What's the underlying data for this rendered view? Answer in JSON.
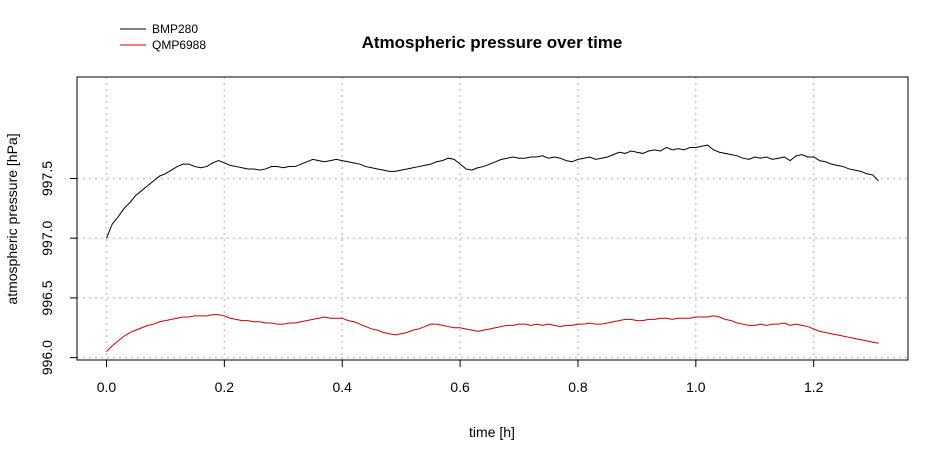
{
  "chart_data": {
    "type": "line",
    "title": "Atmospheric pressure over time",
    "xlabel": "time [h]",
    "ylabel": "atmospheric pressure [hPa]",
    "xlim": [
      -0.05,
      1.36
    ],
    "ylim": [
      995.98,
      998.35
    ],
    "x_ticks": [
      0.0,
      0.2,
      0.4,
      0.6,
      0.8,
      1.0,
      1.2
    ],
    "x_tick_labels": [
      "0.0",
      "0.2",
      "0.4",
      "0.6",
      "0.8",
      "1.0",
      "1.2"
    ],
    "y_ticks": [
      996.0,
      996.5,
      997.0,
      997.5
    ],
    "y_tick_labels": [
      "996.0",
      "996.5",
      "997.0",
      "997.5"
    ],
    "grid": true,
    "legend_position": "top-left",
    "series": [
      {
        "name": "BMP280",
        "color": "#000000",
        "points": [
          [
            0.0,
            997.0
          ],
          [
            0.01,
            997.12
          ],
          [
            0.02,
            997.18
          ],
          [
            0.03,
            997.25
          ],
          [
            0.04,
            997.3
          ],
          [
            0.05,
            997.36
          ],
          [
            0.06,
            997.4
          ],
          [
            0.07,
            997.44
          ],
          [
            0.08,
            997.48
          ],
          [
            0.09,
            997.52
          ],
          [
            0.1,
            997.54
          ],
          [
            0.11,
            997.57
          ],
          [
            0.12,
            997.6
          ],
          [
            0.13,
            997.62
          ],
          [
            0.14,
            997.62
          ],
          [
            0.15,
            997.6
          ],
          [
            0.16,
            997.59
          ],
          [
            0.17,
            997.6
          ],
          [
            0.18,
            997.63
          ],
          [
            0.19,
            997.65
          ],
          [
            0.2,
            997.63
          ],
          [
            0.21,
            997.61
          ],
          [
            0.22,
            997.6
          ],
          [
            0.23,
            997.59
          ],
          [
            0.24,
            997.58
          ],
          [
            0.25,
            997.58
          ],
          [
            0.26,
            997.57
          ],
          [
            0.27,
            997.58
          ],
          [
            0.28,
            997.6
          ],
          [
            0.29,
            997.6
          ],
          [
            0.3,
            997.59
          ],
          [
            0.31,
            997.6
          ],
          [
            0.32,
            997.6
          ],
          [
            0.33,
            997.62
          ],
          [
            0.34,
            997.64
          ],
          [
            0.35,
            997.66
          ],
          [
            0.36,
            997.65
          ],
          [
            0.37,
            997.64
          ],
          [
            0.38,
            997.65
          ],
          [
            0.39,
            997.66
          ],
          [
            0.4,
            997.65
          ],
          [
            0.41,
            997.64
          ],
          [
            0.42,
            997.63
          ],
          [
            0.43,
            997.62
          ],
          [
            0.44,
            997.6
          ],
          [
            0.45,
            997.59
          ],
          [
            0.46,
            997.58
          ],
          [
            0.47,
            997.57
          ],
          [
            0.48,
            997.56
          ],
          [
            0.49,
            997.56
          ],
          [
            0.5,
            997.57
          ],
          [
            0.51,
            997.58
          ],
          [
            0.52,
            997.59
          ],
          [
            0.53,
            997.6
          ],
          [
            0.54,
            997.61
          ],
          [
            0.55,
            997.62
          ],
          [
            0.56,
            997.64
          ],
          [
            0.57,
            997.65
          ],
          [
            0.58,
            997.67
          ],
          [
            0.59,
            997.66
          ],
          [
            0.6,
            997.62
          ],
          [
            0.61,
            997.58
          ],
          [
            0.62,
            997.57
          ],
          [
            0.63,
            997.59
          ],
          [
            0.64,
            997.6
          ],
          [
            0.65,
            997.62
          ],
          [
            0.66,
            997.64
          ],
          [
            0.67,
            997.66
          ],
          [
            0.68,
            997.67
          ],
          [
            0.69,
            997.68
          ],
          [
            0.7,
            997.67
          ],
          [
            0.71,
            997.67
          ],
          [
            0.72,
            997.68
          ],
          [
            0.73,
            997.68
          ],
          [
            0.74,
            997.69
          ],
          [
            0.75,
            997.67
          ],
          [
            0.76,
            997.68
          ],
          [
            0.77,
            997.67
          ],
          [
            0.78,
            997.65
          ],
          [
            0.79,
            997.64
          ],
          [
            0.8,
            997.66
          ],
          [
            0.81,
            997.67
          ],
          [
            0.82,
            997.68
          ],
          [
            0.83,
            997.66
          ],
          [
            0.84,
            997.67
          ],
          [
            0.85,
            997.68
          ],
          [
            0.86,
            997.7
          ],
          [
            0.87,
            997.72
          ],
          [
            0.88,
            997.71
          ],
          [
            0.89,
            997.73
          ],
          [
            0.9,
            997.72
          ],
          [
            0.91,
            997.71
          ],
          [
            0.92,
            997.73
          ],
          [
            0.93,
            997.74
          ],
          [
            0.94,
            997.73
          ],
          [
            0.95,
            997.76
          ],
          [
            0.96,
            997.74
          ],
          [
            0.97,
            997.75
          ],
          [
            0.98,
            997.74
          ],
          [
            0.99,
            997.76
          ],
          [
            1.0,
            997.76
          ],
          [
            1.01,
            997.77
          ],
          [
            1.02,
            997.78
          ],
          [
            1.03,
            997.74
          ],
          [
            1.04,
            997.72
          ],
          [
            1.05,
            997.71
          ],
          [
            1.06,
            997.7
          ],
          [
            1.07,
            997.69
          ],
          [
            1.08,
            997.67
          ],
          [
            1.09,
            997.66
          ],
          [
            1.1,
            997.68
          ],
          [
            1.11,
            997.67
          ],
          [
            1.12,
            997.68
          ],
          [
            1.13,
            997.66
          ],
          [
            1.14,
            997.67
          ],
          [
            1.15,
            997.68
          ],
          [
            1.16,
            997.65
          ],
          [
            1.17,
            997.69
          ],
          [
            1.18,
            997.7
          ],
          [
            1.19,
            997.68
          ],
          [
            1.2,
            997.68
          ],
          [
            1.21,
            997.65
          ],
          [
            1.22,
            997.64
          ],
          [
            1.23,
            997.62
          ],
          [
            1.24,
            997.61
          ],
          [
            1.25,
            997.6
          ],
          [
            1.26,
            997.58
          ],
          [
            1.27,
            997.57
          ],
          [
            1.28,
            997.56
          ],
          [
            1.29,
            997.54
          ],
          [
            1.3,
            997.53
          ],
          [
            1.31,
            997.48
          ]
        ]
      },
      {
        "name": "QMP6988",
        "color": "#cc0000",
        "points": [
          [
            0.0,
            996.05
          ],
          [
            0.01,
            996.1
          ],
          [
            0.02,
            996.14
          ],
          [
            0.03,
            996.18
          ],
          [
            0.04,
            996.21
          ],
          [
            0.05,
            996.23
          ],
          [
            0.06,
            996.25
          ],
          [
            0.07,
            996.27
          ],
          [
            0.08,
            996.28
          ],
          [
            0.09,
            996.3
          ],
          [
            0.1,
            996.31
          ],
          [
            0.11,
            996.32
          ],
          [
            0.12,
            996.33
          ],
          [
            0.13,
            996.34
          ],
          [
            0.14,
            996.34
          ],
          [
            0.15,
            996.35
          ],
          [
            0.16,
            996.35
          ],
          [
            0.17,
            996.35
          ],
          [
            0.18,
            996.36
          ],
          [
            0.19,
            996.36
          ],
          [
            0.2,
            996.35
          ],
          [
            0.21,
            996.33
          ],
          [
            0.22,
            996.32
          ],
          [
            0.23,
            996.31
          ],
          [
            0.24,
            996.31
          ],
          [
            0.25,
            996.3
          ],
          [
            0.26,
            996.3
          ],
          [
            0.27,
            996.29
          ],
          [
            0.28,
            996.29
          ],
          [
            0.29,
            996.28
          ],
          [
            0.3,
            996.28
          ],
          [
            0.31,
            996.29
          ],
          [
            0.32,
            996.29
          ],
          [
            0.33,
            996.3
          ],
          [
            0.34,
            996.31
          ],
          [
            0.35,
            996.32
          ],
          [
            0.36,
            996.33
          ],
          [
            0.37,
            996.34
          ],
          [
            0.38,
            996.33
          ],
          [
            0.39,
            996.33
          ],
          [
            0.4,
            996.33
          ],
          [
            0.41,
            996.31
          ],
          [
            0.42,
            996.3
          ],
          [
            0.43,
            996.28
          ],
          [
            0.44,
            996.26
          ],
          [
            0.45,
            996.24
          ],
          [
            0.46,
            996.23
          ],
          [
            0.47,
            996.21
          ],
          [
            0.48,
            996.2
          ],
          [
            0.49,
            996.19
          ],
          [
            0.5,
            996.2
          ],
          [
            0.51,
            996.21
          ],
          [
            0.52,
            996.23
          ],
          [
            0.53,
            996.24
          ],
          [
            0.54,
            996.26
          ],
          [
            0.55,
            996.28
          ],
          [
            0.56,
            996.28
          ],
          [
            0.57,
            996.27
          ],
          [
            0.58,
            996.26
          ],
          [
            0.59,
            996.25
          ],
          [
            0.6,
            996.25
          ],
          [
            0.61,
            996.24
          ],
          [
            0.62,
            996.23
          ],
          [
            0.63,
            996.22
          ],
          [
            0.64,
            996.23
          ],
          [
            0.65,
            996.24
          ],
          [
            0.66,
            996.25
          ],
          [
            0.67,
            996.26
          ],
          [
            0.68,
            996.27
          ],
          [
            0.69,
            996.27
          ],
          [
            0.7,
            996.28
          ],
          [
            0.71,
            996.28
          ],
          [
            0.72,
            996.27
          ],
          [
            0.73,
            996.28
          ],
          [
            0.74,
            996.27
          ],
          [
            0.75,
            996.28
          ],
          [
            0.76,
            996.27
          ],
          [
            0.77,
            996.26
          ],
          [
            0.78,
            996.27
          ],
          [
            0.79,
            996.27
          ],
          [
            0.8,
            996.28
          ],
          [
            0.81,
            996.28
          ],
          [
            0.82,
            996.29
          ],
          [
            0.83,
            996.28
          ],
          [
            0.84,
            996.28
          ],
          [
            0.85,
            996.29
          ],
          [
            0.86,
            996.3
          ],
          [
            0.87,
            996.31
          ],
          [
            0.88,
            996.32
          ],
          [
            0.89,
            996.32
          ],
          [
            0.9,
            996.31
          ],
          [
            0.91,
            996.31
          ],
          [
            0.92,
            996.32
          ],
          [
            0.93,
            996.32
          ],
          [
            0.94,
            996.33
          ],
          [
            0.95,
            996.33
          ],
          [
            0.96,
            996.32
          ],
          [
            0.97,
            996.33
          ],
          [
            0.98,
            996.33
          ],
          [
            0.99,
            996.33
          ],
          [
            1.0,
            996.34
          ],
          [
            1.01,
            996.34
          ],
          [
            1.02,
            996.34
          ],
          [
            1.03,
            996.35
          ],
          [
            1.04,
            996.34
          ],
          [
            1.05,
            996.32
          ],
          [
            1.06,
            996.31
          ],
          [
            1.07,
            996.29
          ],
          [
            1.08,
            996.28
          ],
          [
            1.09,
            996.27
          ],
          [
            1.1,
            996.27
          ],
          [
            1.11,
            996.28
          ],
          [
            1.12,
            996.27
          ],
          [
            1.13,
            996.28
          ],
          [
            1.14,
            996.28
          ],
          [
            1.15,
            996.29
          ],
          [
            1.16,
            996.27
          ],
          [
            1.17,
            996.28
          ],
          [
            1.18,
            996.27
          ],
          [
            1.19,
            996.26
          ],
          [
            1.2,
            996.24
          ],
          [
            1.21,
            996.22
          ],
          [
            1.22,
            996.21
          ],
          [
            1.23,
            996.2
          ],
          [
            1.24,
            996.19
          ],
          [
            1.25,
            996.18
          ],
          [
            1.26,
            996.17
          ],
          [
            1.27,
            996.16
          ],
          [
            1.28,
            996.15
          ],
          [
            1.29,
            996.14
          ],
          [
            1.3,
            996.13
          ],
          [
            1.31,
            996.12
          ]
        ]
      }
    ]
  }
}
